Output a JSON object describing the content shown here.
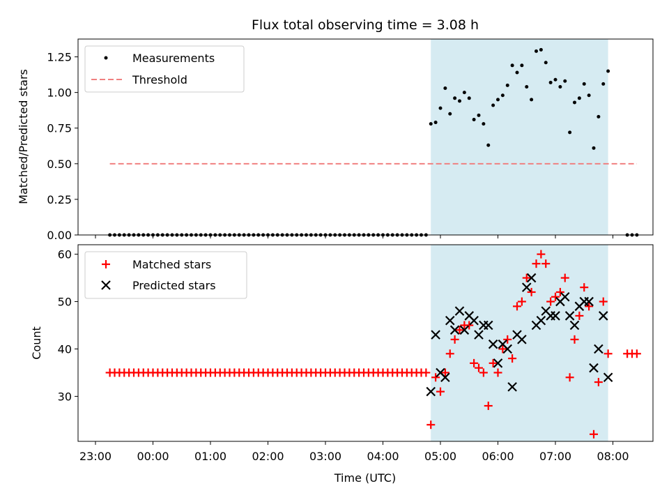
{
  "chart_data": [
    {
      "type": "scatter",
      "title": "Flux total observing time = 3.08 h",
      "xlabel": "",
      "ylabel": "Matched/Predicted stars",
      "ylim": [
        0,
        1.375
      ],
      "yticks": [
        "0.00",
        "0.25",
        "0.50",
        "0.75",
        "1.00",
        "1.25"
      ],
      "shaded_region_x": [
        "04:50",
        "07:55"
      ],
      "legend_position": "top-left",
      "series": [
        {
          "name": "Measurements",
          "marker": "dot",
          "color": "#000000",
          "zero_time_range": [
            "23:15",
            "04:45"
          ],
          "zero_time_step_minutes": 5,
          "points": [
            [
              "04:50",
              0.78
            ],
            [
              "04:55",
              0.79
            ],
            [
              "05:00",
              0.89
            ],
            [
              "05:05",
              1.03
            ],
            [
              "05:10",
              0.85
            ],
            [
              "05:15",
              0.96
            ],
            [
              "05:20",
              0.94
            ],
            [
              "05:25",
              1.0
            ],
            [
              "05:30",
              0.96
            ],
            [
              "05:35",
              0.81
            ],
            [
              "05:40",
              0.84
            ],
            [
              "05:45",
              0.78
            ],
            [
              "05:50",
              0.63
            ],
            [
              "05:55",
              0.91
            ],
            [
              "06:00",
              0.95
            ],
            [
              "06:05",
              0.98
            ],
            [
              "06:10",
              1.05
            ],
            [
              "06:15",
              1.19
            ],
            [
              "06:20",
              1.14
            ],
            [
              "06:25",
              1.19
            ],
            [
              "06:30",
              1.04
            ],
            [
              "06:35",
              0.95
            ],
            [
              "06:40",
              1.29
            ],
            [
              "06:45",
              1.3
            ],
            [
              "06:50",
              1.21
            ],
            [
              "06:55",
              1.07
            ],
            [
              "07:00",
              1.09
            ],
            [
              "07:05",
              1.04
            ],
            [
              "07:10",
              1.08
            ],
            [
              "07:15",
              0.72
            ],
            [
              "07:20",
              0.93
            ],
            [
              "07:25",
              0.96
            ],
            [
              "07:30",
              1.06
            ],
            [
              "07:35",
              0.98
            ],
            [
              "07:40",
              0.61
            ],
            [
              "07:45",
              0.83
            ],
            [
              "07:50",
              1.06
            ],
            [
              "07:55",
              1.15
            ],
            [
              "08:15",
              0.0
            ],
            [
              "08:20",
              0.0
            ],
            [
              "08:25",
              0.0
            ]
          ]
        },
        {
          "name": "Threshold",
          "marker": "dashed-line",
          "color": "#f08080",
          "points": [
            [
              "23:15",
              0.5
            ],
            [
              "08:25",
              0.5
            ]
          ]
        }
      ]
    },
    {
      "type": "scatter",
      "title": "",
      "xlabel": "Time (UTC)",
      "ylabel": "Count",
      "ylim": [
        20.5,
        62
      ],
      "yticks": [
        "30",
        "40",
        "50",
        "60"
      ],
      "xticks": [
        "23:00",
        "00:00",
        "01:00",
        "02:00",
        "03:00",
        "04:00",
        "05:00",
        "06:00",
        "07:00",
        "08:00"
      ],
      "shaded_region_x": [
        "04:50",
        "07:55"
      ],
      "legend_position": "top-left",
      "series": [
        {
          "name": "Matched stars",
          "marker": "plus",
          "color": "#ff0000",
          "constant_time_range": [
            "23:15",
            "04:45"
          ],
          "constant_time_step_minutes": 5,
          "constant_value": 35,
          "points": [
            [
              "04:50",
              24
            ],
            [
              "04:55",
              34
            ],
            [
              "05:00",
              31
            ],
            [
              "05:05",
              35
            ],
            [
              "05:10",
              39
            ],
            [
              "05:15",
              42
            ],
            [
              "05:20",
              44
            ],
            [
              "05:25",
              45
            ],
            [
              "05:30",
              45
            ],
            [
              "05:35",
              37
            ],
            [
              "05:40",
              36
            ],
            [
              "05:45",
              35
            ],
            [
              "05:50",
              28
            ],
            [
              "05:55",
              37
            ],
            [
              "06:00",
              35
            ],
            [
              "06:05",
              40
            ],
            [
              "06:10",
              42
            ],
            [
              "06:15",
              38
            ],
            [
              "06:20",
              49
            ],
            [
              "06:25",
              50
            ],
            [
              "06:30",
              55
            ],
            [
              "06:35",
              52
            ],
            [
              "06:40",
              58
            ],
            [
              "06:45",
              60
            ],
            [
              "06:50",
              58
            ],
            [
              "06:55",
              50
            ],
            [
              "07:00",
              51
            ],
            [
              "07:05",
              52
            ],
            [
              "07:10",
              55
            ],
            [
              "07:15",
              34
            ],
            [
              "07:20",
              42
            ],
            [
              "07:25",
              47
            ],
            [
              "07:30",
              53
            ],
            [
              "07:35",
              49
            ],
            [
              "07:40",
              22
            ],
            [
              "07:45",
              33
            ],
            [
              "07:50",
              50
            ],
            [
              "07:55",
              39
            ],
            [
              "08:15",
              39
            ],
            [
              "08:20",
              39
            ],
            [
              "08:25",
              39
            ]
          ]
        },
        {
          "name": "Predicted stars",
          "marker": "x",
          "color": "#000000",
          "points": [
            [
              "04:50",
              31
            ],
            [
              "04:55",
              43
            ],
            [
              "05:00",
              35
            ],
            [
              "05:05",
              34
            ],
            [
              "05:10",
              46
            ],
            [
              "05:15",
              44
            ],
            [
              "05:20",
              48
            ],
            [
              "05:25",
              44
            ],
            [
              "05:30",
              47
            ],
            [
              "05:35",
              46
            ],
            [
              "05:40",
              43
            ],
            [
              "05:45",
              45
            ],
            [
              "05:50",
              45
            ],
            [
              "05:55",
              41
            ],
            [
              "06:00",
              37
            ],
            [
              "06:05",
              41
            ],
            [
              "06:10",
              40
            ],
            [
              "06:15",
              32
            ],
            [
              "06:20",
              43
            ],
            [
              "06:25",
              42
            ],
            [
              "06:30",
              53
            ],
            [
              "06:35",
              55
            ],
            [
              "06:40",
              45
            ],
            [
              "06:45",
              46
            ],
            [
              "06:50",
              48
            ],
            [
              "06:55",
              47
            ],
            [
              "07:00",
              47
            ],
            [
              "07:05",
              50
            ],
            [
              "07:10",
              51
            ],
            [
              "07:15",
              47
            ],
            [
              "07:20",
              45
            ],
            [
              "07:25",
              49
            ],
            [
              "07:30",
              50
            ],
            [
              "07:35",
              50
            ],
            [
              "07:40",
              36
            ],
            [
              "07:45",
              40
            ],
            [
              "07:50",
              47
            ],
            [
              "07:55",
              34
            ]
          ]
        }
      ]
    }
  ],
  "colors": {
    "shade": "#add8e6",
    "matched": "#ff0000",
    "predicted": "#000000",
    "threshold": "#f08080"
  }
}
